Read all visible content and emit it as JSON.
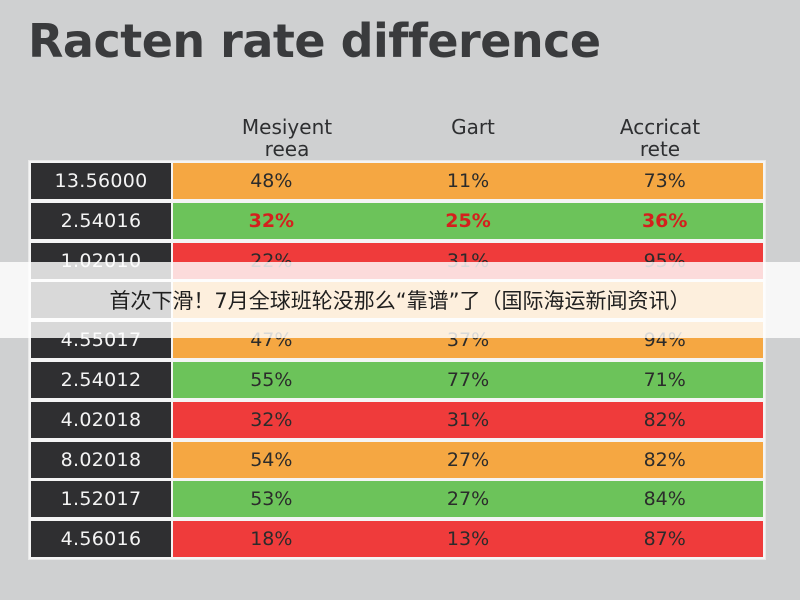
{
  "title": "Racten rate difference",
  "chart_data": {
    "type": "table",
    "title": "Racten rate difference",
    "columns": [
      "Mesiyent\nreea",
      "Gart",
      "Accricat\nrete"
    ],
    "rows": [
      {
        "id": "13.56000",
        "values": [
          "48%",
          "11%",
          "73%"
        ],
        "color": "#f5a742"
      },
      {
        "id": "2.54016",
        "values": [
          "32%",
          "25%",
          "36%"
        ],
        "color": "#6cc35a",
        "highlight": true
      },
      {
        "id": "1.02010",
        "values": [
          "22%",
          "31%",
          "95%"
        ],
        "color": "#ef3b3b"
      },
      {
        "id": "",
        "values": [
          "",
          "",
          ""
        ],
        "color": "#f5a742"
      },
      {
        "id": "4.55017",
        "values": [
          "47%",
          "37%",
          "94%"
        ],
        "color": "#f5a742"
      },
      {
        "id": "2.54012",
        "values": [
          "55%",
          "77%",
          "71%"
        ],
        "color": "#6cc35a"
      },
      {
        "id": "4.02018",
        "values": [
          "32%",
          "31%",
          "82%"
        ],
        "color": "#ef3b3b"
      },
      {
        "id": "8.02018",
        "values": [
          "54%",
          "27%",
          "82%"
        ],
        "color": "#f5a742"
      },
      {
        "id": "1.52017",
        "values": [
          "53%",
          "27%",
          "84%"
        ],
        "color": "#6cc35a"
      },
      {
        "id": "4.56016",
        "values": [
          "18%",
          "13%",
          "87%"
        ],
        "color": "#ef3b3b"
      }
    ]
  },
  "overlay": {
    "caption": "首次下滑！7月全球班轮没那么“靠谱”了（国际海运新闻资讯）"
  }
}
